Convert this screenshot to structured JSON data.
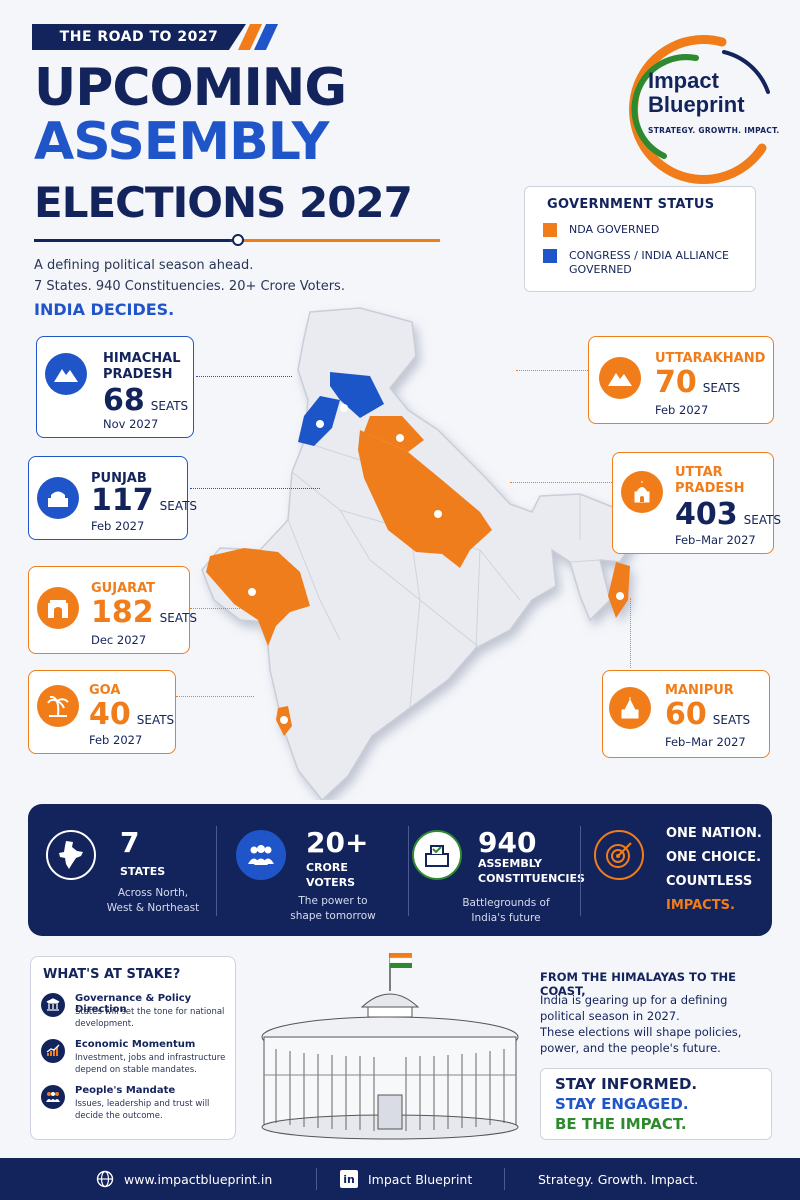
{
  "header": {
    "kicker": "THE ROAD TO 2027",
    "title_line1": "UPCOMING",
    "title_line2": "ASSEMBLY",
    "title_line3": "ELECTIONS 2027",
    "subtitle_line1": "A defining political season ahead.",
    "subtitle_line2": "7 States. 940 Constituencies. 20+ Crore Voters.",
    "tagline": "INDIA DECIDES."
  },
  "logo": {
    "name_line1": "Impact",
    "name_line2": "Blueprint",
    "slogan": "STRATEGY. GROWTH. IMPACT."
  },
  "legend": {
    "title": "GOVERNMENT STATUS",
    "items": [
      {
        "label": "NDA GOVERNED",
        "color": "#f07d1a"
      },
      {
        "label": "CONGRESS / INDIA ALLIANCE GOVERNED",
        "color": "#1f55c8"
      }
    ]
  },
  "states": [
    {
      "name_l1": "HIMACHAL",
      "name_l2": "PRADESH",
      "seats": "68",
      "seats_label": "SEATS",
      "date": "Nov 2027",
      "party_color": "#1f55c8",
      "icon": "mountain-icon"
    },
    {
      "name_l1": "PUNJAB",
      "name_l2": "",
      "seats": "117",
      "seats_label": "SEATS",
      "date": "Feb 2027",
      "party_color": "#1f55c8",
      "icon": "golden-temple-icon"
    },
    {
      "name_l1": "GUJARAT",
      "name_l2": "",
      "seats": "182",
      "seats_label": "SEATS",
      "date": "Dec 2027",
      "party_color": "#f07d1a",
      "icon": "gateway-icon"
    },
    {
      "name_l1": "GOA",
      "name_l2": "",
      "seats": "40",
      "seats_label": "SEATS",
      "date": "Feb 2027",
      "party_color": "#f07d1a",
      "icon": "palm-tree-icon"
    },
    {
      "name_l1": "UTTARAKHAND",
      "name_l2": "",
      "seats": "70",
      "seats_label": "SEATS",
      "date": "Feb 2027",
      "party_color": "#f07d1a",
      "icon": "mountain-icon"
    },
    {
      "name_l1": "UTTAR",
      "name_l2": "PRADESH",
      "seats": "403",
      "seats_label": "SEATS",
      "date": "Feb–Mar 2027",
      "party_color": "#f07d1a",
      "icon": "taj-mahal-icon"
    },
    {
      "name_l1": "MANIPUR",
      "name_l2": "",
      "seats": "60",
      "seats_label": "SEATS",
      "date": "Feb–Mar 2027",
      "party_color": "#f07d1a",
      "icon": "temple-icon"
    }
  ],
  "stats": [
    {
      "number": "7",
      "label": "STATES",
      "desc_l1": "Across North,",
      "desc_l2": "West & Northeast",
      "icon": "india-map-icon"
    },
    {
      "number": "20+",
      "label": "CRORE\nVOTERS",
      "desc_l1": "The power to",
      "desc_l2": "shape tomorrow",
      "icon": "people-icon"
    },
    {
      "number": "940",
      "label": "ASSEMBLY\nCONSTITUENCIES",
      "desc_l1": "Battlegrounds of",
      "desc_l2": "India's future",
      "icon": "ballot-box-icon"
    }
  ],
  "slogan": {
    "line1": "ONE NATION.",
    "line2": "ONE CHOICE.",
    "line3": "COUNTLESS",
    "line4": "IMPACTS."
  },
  "stake": {
    "title": "WHAT'S AT STAKE?",
    "items": [
      {
        "heading": "Governance & Policy Direction",
        "desc": "States will set the tone for national development.",
        "icon": "pillars-icon"
      },
      {
        "heading": "Economic Momentum",
        "desc": "Investment, jobs and infrastructure depend on stable mandates.",
        "icon": "growth-chart-icon"
      },
      {
        "heading": "People's Mandate",
        "desc": "Issues, leadership and trust will decide the outcome.",
        "icon": "people-icon"
      }
    ]
  },
  "closing": {
    "heading": "FROM THE HIMALAYAS TO THE COAST,",
    "body_l1": "India is gearing up for a defining",
    "body_l2": "political season in 2027.",
    "body_l3": "These elections will shape policies,",
    "body_l4": "power, and the people's future.",
    "cta1": "STAY INFORMED.",
    "cta2": "STAY ENGAGED.",
    "cta3": "BE THE IMPACT."
  },
  "footer": {
    "website": "www.impactblueprint.in",
    "linkedin": "Impact Blueprint",
    "tagline": "Strategy. Growth. Impact."
  },
  "colors": {
    "navy": "#13235b",
    "blue": "#1f55c8",
    "orange": "#f07d1a",
    "green": "#2f8a2f"
  }
}
